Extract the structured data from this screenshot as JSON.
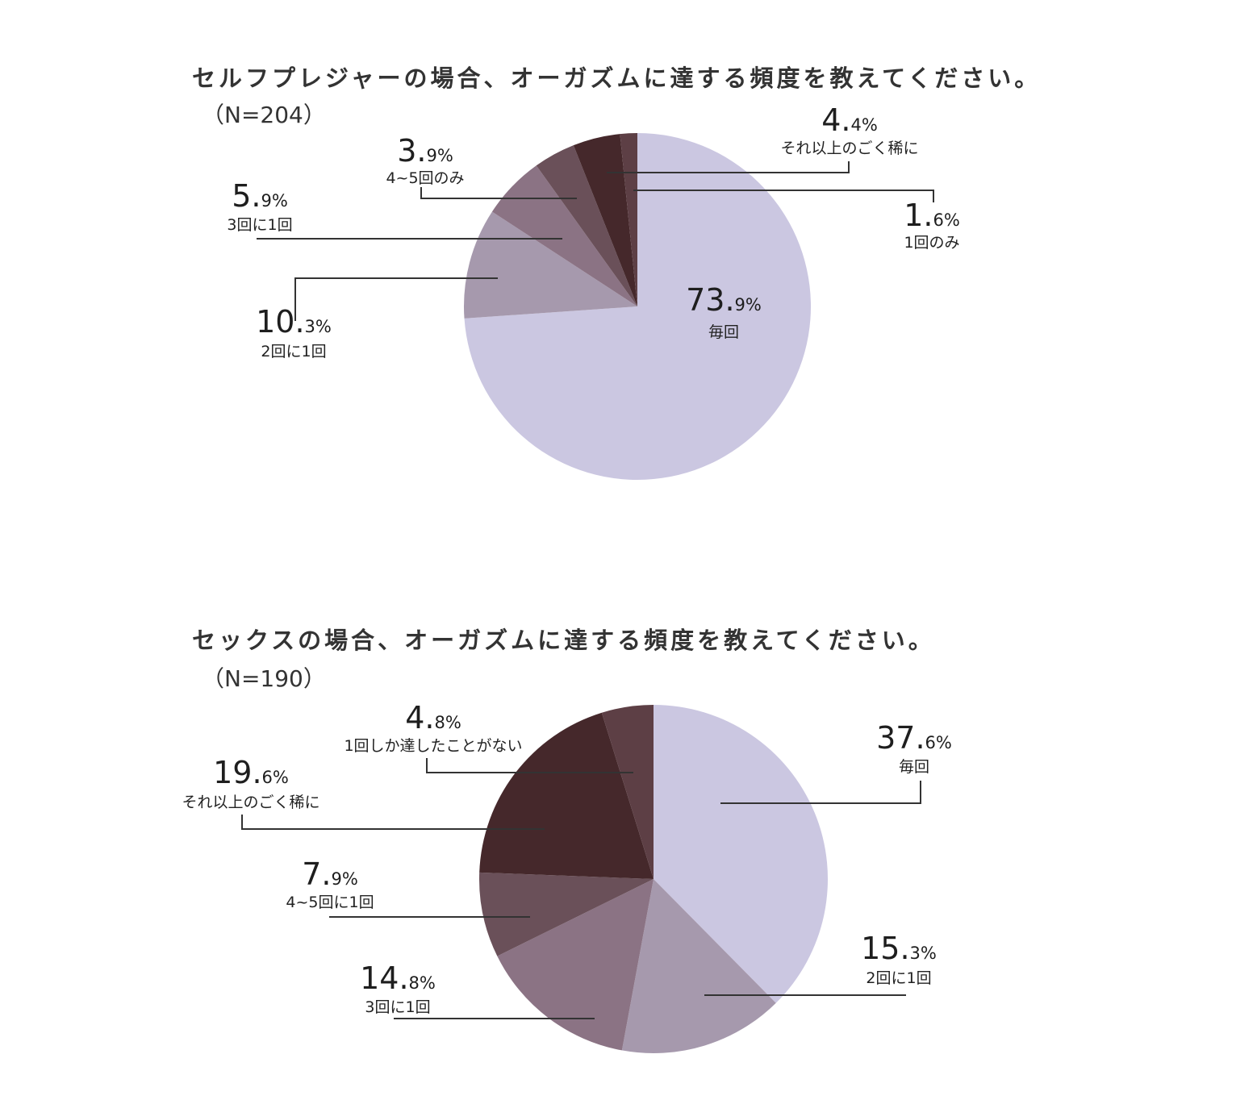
{
  "chart_data": [
    {
      "type": "pie",
      "title": "セルフプレジャーの場合、オーガズムに達する頻度を教えてください。",
      "subtitle": "（N=204）",
      "slices": [
        {
          "label": "毎回",
          "value": 73.9,
          "int": "73.",
          "dec": "9%",
          "color": "#cbc7e1"
        },
        {
          "label": "2回に1回",
          "value": 10.3,
          "int": "10.",
          "dec": "3%",
          "color": "#a699ad"
        },
        {
          "label": "3回に1回",
          "value": 5.9,
          "int": "5.",
          "dec": "9%",
          "color": "#8b7384"
        },
        {
          "label": "4~5回のみ",
          "value": 3.9,
          "int": "3.",
          "dec": "9%",
          "color": "#6a5059"
        },
        {
          "label": "それ以上のごく稀に",
          "value": 4.4,
          "int": "4.",
          "dec": "4%",
          "color": "#45282b"
        },
        {
          "label": "1回のみ",
          "value": 1.6,
          "int": "1.",
          "dec": "6%",
          "color": "#5d3f45"
        }
      ]
    },
    {
      "type": "pie",
      "title": "セックスの場合、オーガズムに達する頻度を教えてください。",
      "subtitle": "（N=190）",
      "slices": [
        {
          "label": "毎回",
          "value": 37.6,
          "int": "37.",
          "dec": "6%",
          "color": "#cbc7e1"
        },
        {
          "label": "2回に1回",
          "value": 15.3,
          "int": "15.",
          "dec": "3%",
          "color": "#a699ad"
        },
        {
          "label": "3回に1回",
          "value": 14.8,
          "int": "14.",
          "dec": "8%",
          "color": "#8b7384"
        },
        {
          "label": "4~5回に1回",
          "value": 7.9,
          "int": "7.",
          "dec": "9%",
          "color": "#6a5059"
        },
        {
          "label": "それ以上のごく稀に",
          "value": 19.6,
          "int": "19.",
          "dec": "6%",
          "color": "#45282b"
        },
        {
          "label": "1回しか達したことがない",
          "value": 4.8,
          "int": "4.",
          "dec": "8%",
          "color": "#5d3f45"
        }
      ]
    }
  ]
}
